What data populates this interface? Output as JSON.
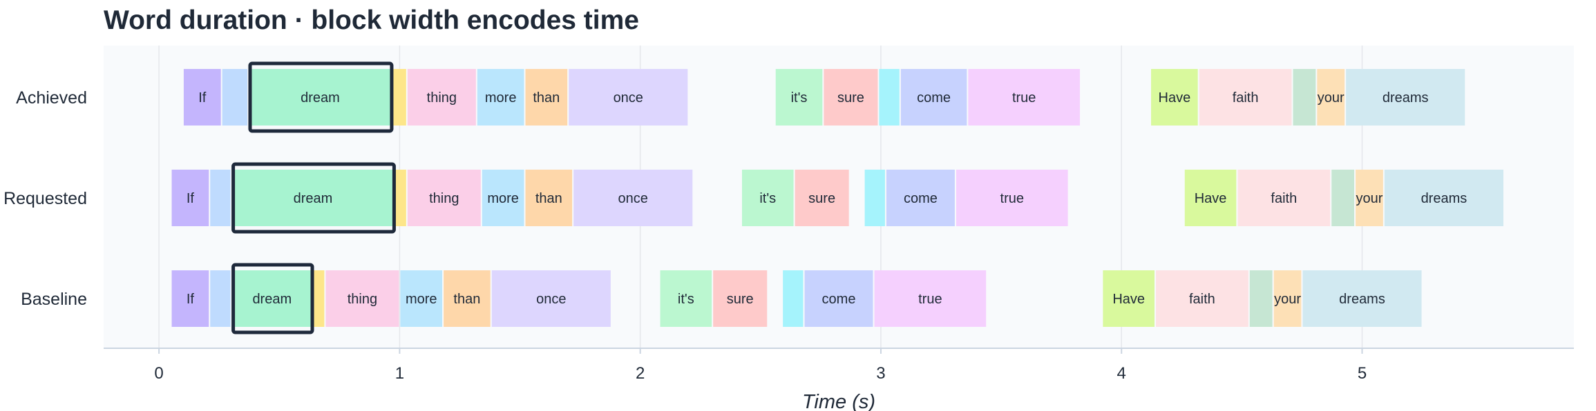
{
  "chart_data": {
    "type": "bar",
    "title": "Word duration · block width encodes time",
    "xlabel": "Time (s)",
    "ylabel": "",
    "xlim": [
      -0.23,
      5.88
    ],
    "xticks": [
      0,
      1,
      2,
      3,
      4,
      5
    ],
    "grid": "vertical",
    "rows": [
      {
        "name": "Achieved",
        "highlight_word": "dream",
        "segments": [
          {
            "label": "If",
            "start": 0.1,
            "end": 0.26,
            "color": "#c4b5fd"
          },
          {
            "label": "",
            "start": 0.26,
            "end": 0.37,
            "color": "#bfdbfe"
          },
          {
            "label": "dream",
            "start": 0.37,
            "end": 0.97,
            "color": "#a7f3d0"
          },
          {
            "label": "",
            "start": 0.97,
            "end": 1.03,
            "color": "#fde68a"
          },
          {
            "label": "thing",
            "start": 1.03,
            "end": 1.32,
            "color": "#fbcfe8"
          },
          {
            "label": "more",
            "start": 1.32,
            "end": 1.52,
            "color": "#bae6fd"
          },
          {
            "label": "than",
            "start": 1.52,
            "end": 1.7,
            "color": "#fed7aa"
          },
          {
            "label": "once",
            "start": 1.7,
            "end": 2.2,
            "color": "#ddd6fe"
          },
          {
            "label": "it's",
            "start": 2.56,
            "end": 2.76,
            "color": "#bbf7d0"
          },
          {
            "label": "sure",
            "start": 2.76,
            "end": 2.99,
            "color": "#fecaca"
          },
          {
            "label": "",
            "start": 2.99,
            "end": 3.08,
            "color": "#a5f3fc"
          },
          {
            "label": "come",
            "start": 3.08,
            "end": 3.36,
            "color": "#c7d2fe"
          },
          {
            "label": "true",
            "start": 3.36,
            "end": 3.83,
            "color": "#f5d0fe"
          },
          {
            "label": "Have",
            "start": 4.12,
            "end": 4.32,
            "color": "#d9f99d"
          },
          {
            "label": "faith",
            "start": 4.32,
            "end": 4.71,
            "color": "#fde2e4"
          },
          {
            "label": "",
            "start": 4.71,
            "end": 4.81,
            "color": "#c6e6d3"
          },
          {
            "label": "your",
            "start": 4.81,
            "end": 4.93,
            "color": "#fde0b6"
          },
          {
            "label": "dreams",
            "start": 4.93,
            "end": 5.43,
            "color": "#d1e9f1"
          }
        ]
      },
      {
        "name": "Requested",
        "highlight_word": "dream",
        "segments": [
          {
            "label": "If",
            "start": 0.05,
            "end": 0.21,
            "color": "#c4b5fd"
          },
          {
            "label": "",
            "start": 0.21,
            "end": 0.3,
            "color": "#bfdbfe"
          },
          {
            "label": "dream",
            "start": 0.3,
            "end": 0.98,
            "color": "#a7f3d0"
          },
          {
            "label": "",
            "start": 0.98,
            "end": 1.03,
            "color": "#fde68a"
          },
          {
            "label": "thing",
            "start": 1.03,
            "end": 1.34,
            "color": "#fbcfe8"
          },
          {
            "label": "more",
            "start": 1.34,
            "end": 1.52,
            "color": "#bae6fd"
          },
          {
            "label": "than",
            "start": 1.52,
            "end": 1.72,
            "color": "#fed7aa"
          },
          {
            "label": "once",
            "start": 1.72,
            "end": 2.22,
            "color": "#ddd6fe"
          },
          {
            "label": "it's",
            "start": 2.42,
            "end": 2.64,
            "color": "#bbf7d0"
          },
          {
            "label": "sure",
            "start": 2.64,
            "end": 2.87,
            "color": "#fecaca"
          },
          {
            "label": "",
            "start": 2.93,
            "end": 3.02,
            "color": "#a5f3fc"
          },
          {
            "label": "come",
            "start": 3.02,
            "end": 3.31,
            "color": "#c7d2fe"
          },
          {
            "label": "true",
            "start": 3.31,
            "end": 3.78,
            "color": "#f5d0fe"
          },
          {
            "label": "Have",
            "start": 4.26,
            "end": 4.48,
            "color": "#d9f99d"
          },
          {
            "label": "faith",
            "start": 4.48,
            "end": 4.87,
            "color": "#fde2e4"
          },
          {
            "label": "",
            "start": 4.87,
            "end": 4.97,
            "color": "#c6e6d3"
          },
          {
            "label": "your",
            "start": 4.97,
            "end": 5.09,
            "color": "#fde0b6"
          },
          {
            "label": "dreams",
            "start": 5.09,
            "end": 5.59,
            "color": "#d1e9f1"
          }
        ]
      },
      {
        "name": "Baseline",
        "highlight_word": "dream",
        "segments": [
          {
            "label": "If",
            "start": 0.05,
            "end": 0.21,
            "color": "#c4b5fd"
          },
          {
            "label": "",
            "start": 0.21,
            "end": 0.3,
            "color": "#bfdbfe"
          },
          {
            "label": "dream",
            "start": 0.3,
            "end": 0.64,
            "color": "#a7f3d0"
          },
          {
            "label": "",
            "start": 0.64,
            "end": 0.69,
            "color": "#fde68a"
          },
          {
            "label": "thing",
            "start": 0.69,
            "end": 1.0,
            "color": "#fbcfe8"
          },
          {
            "label": "more",
            "start": 1.0,
            "end": 1.18,
            "color": "#bae6fd"
          },
          {
            "label": "than",
            "start": 1.18,
            "end": 1.38,
            "color": "#fed7aa"
          },
          {
            "label": "once",
            "start": 1.38,
            "end": 1.88,
            "color": "#ddd6fe"
          },
          {
            "label": "it's",
            "start": 2.08,
            "end": 2.3,
            "color": "#bbf7d0"
          },
          {
            "label": "sure",
            "start": 2.3,
            "end": 2.53,
            "color": "#fecaca"
          },
          {
            "label": "",
            "start": 2.59,
            "end": 2.68,
            "color": "#a5f3fc"
          },
          {
            "label": "come",
            "start": 2.68,
            "end": 2.97,
            "color": "#c7d2fe"
          },
          {
            "label": "true",
            "start": 2.97,
            "end": 3.44,
            "color": "#f5d0fe"
          },
          {
            "label": "Have",
            "start": 3.92,
            "end": 4.14,
            "color": "#d9f99d"
          },
          {
            "label": "faith",
            "start": 4.14,
            "end": 4.53,
            "color": "#fde2e4"
          },
          {
            "label": "",
            "start": 4.53,
            "end": 4.63,
            "color": "#c6e6d3"
          },
          {
            "label": "your",
            "start": 4.63,
            "end": 4.75,
            "color": "#fde0b6"
          },
          {
            "label": "dreams",
            "start": 4.75,
            "end": 5.25,
            "color": "#d1e9f1"
          }
        ]
      }
    ],
    "colors": {
      "plot_background": "#f8fafc",
      "gridline": "#e5e7eb",
      "axis": "#cbd5e1",
      "highlight_outline": "#1e293b",
      "text": "#1f2937"
    }
  }
}
